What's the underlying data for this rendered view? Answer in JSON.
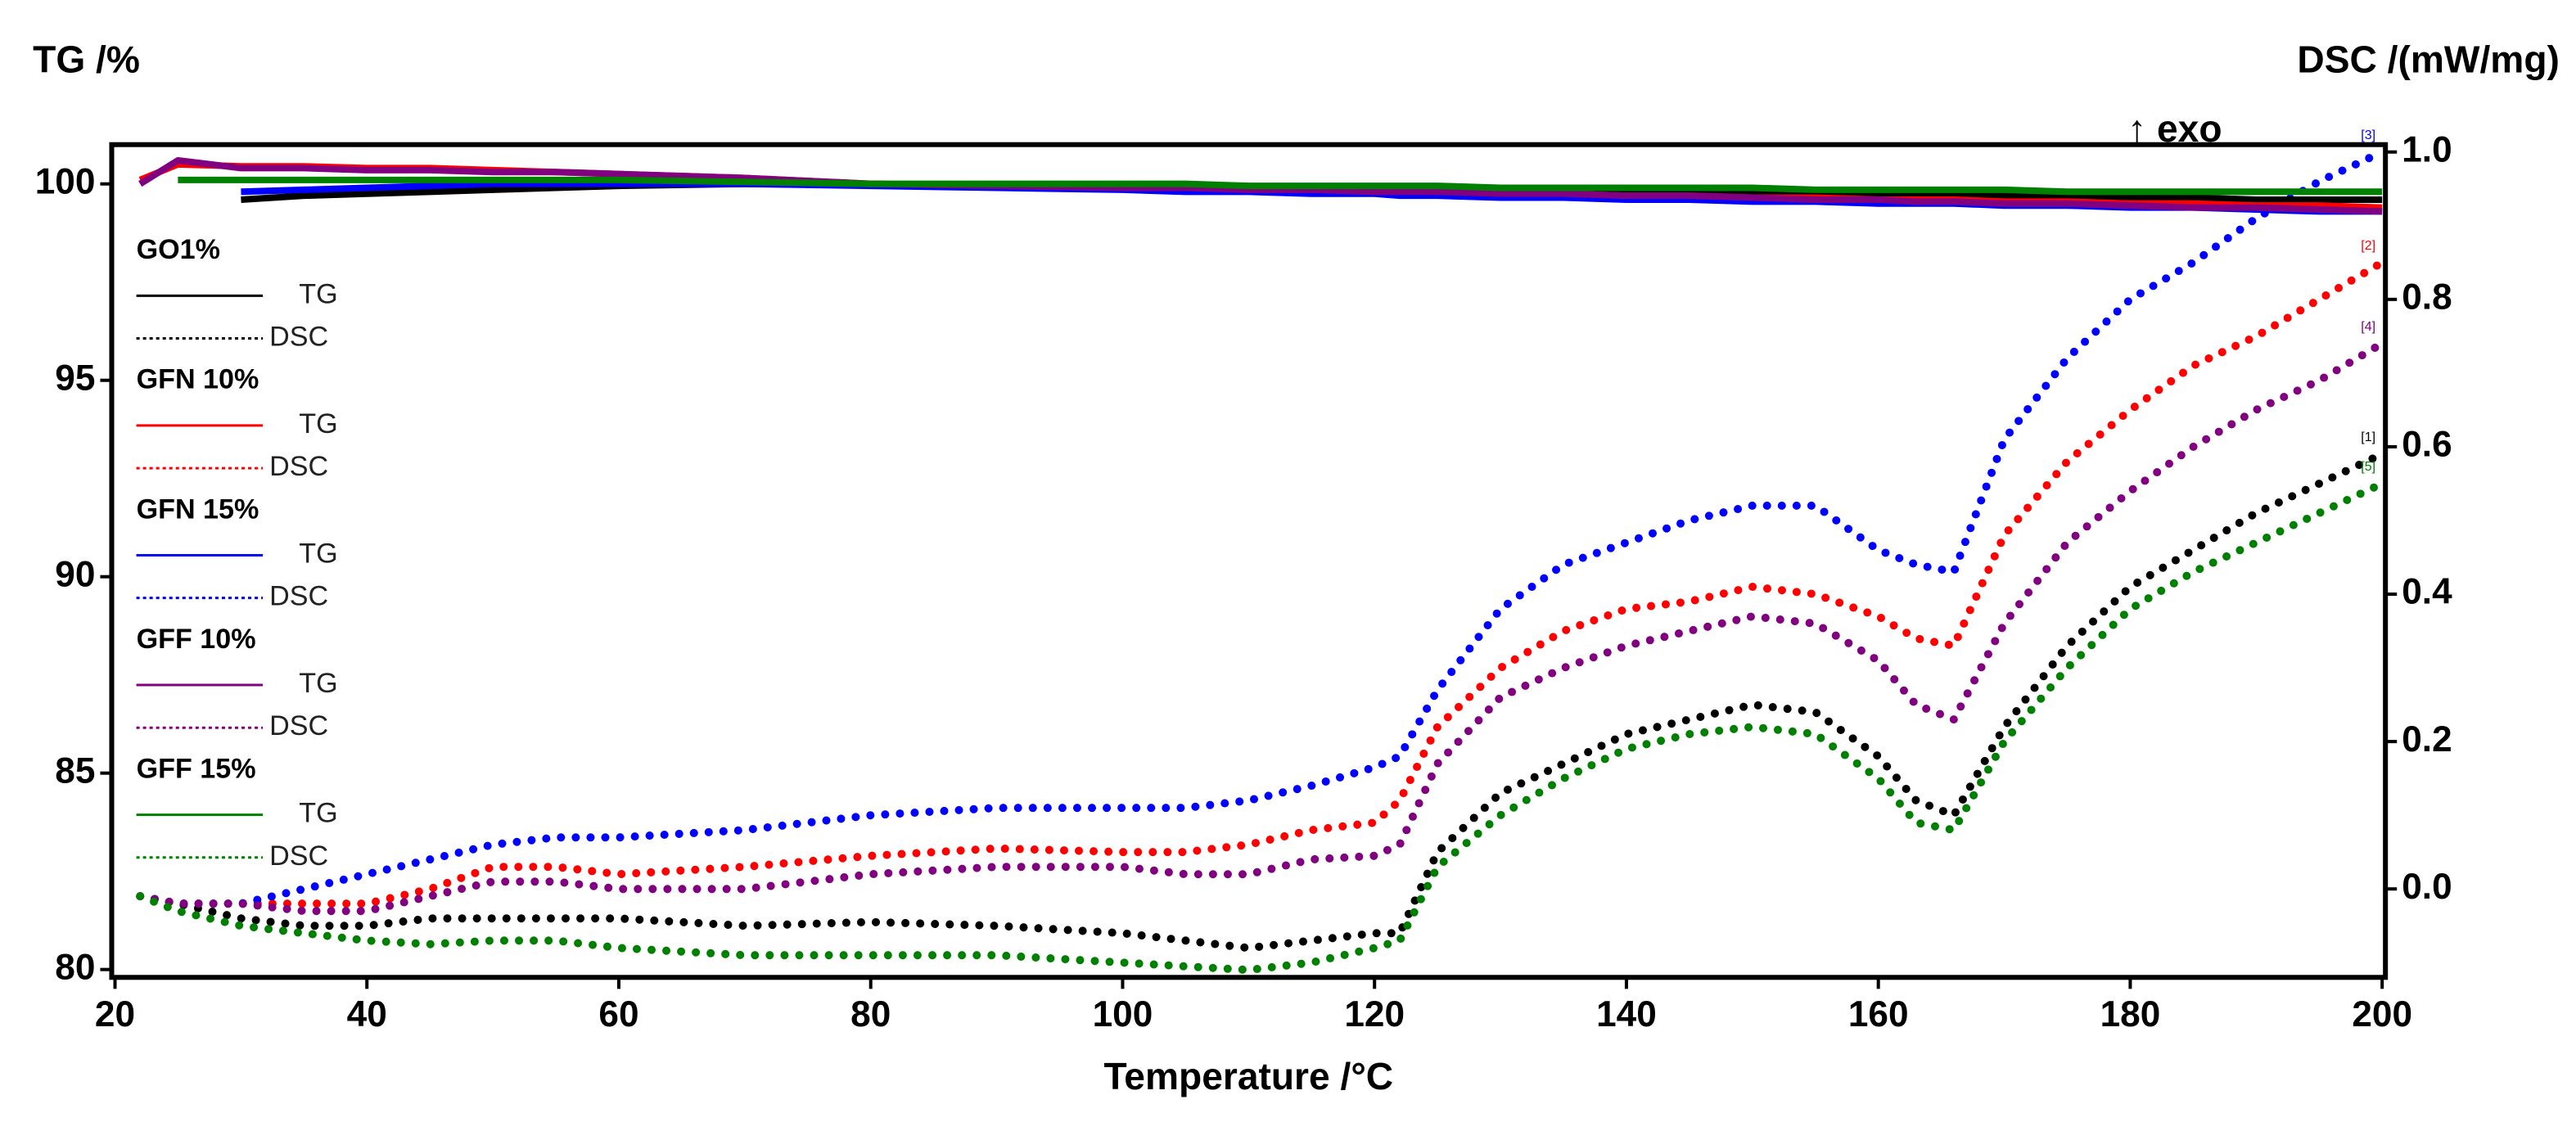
{
  "chart_data": {
    "type": "line",
    "y_label": "TG /%",
    "y2_label": "DSC /(mW/mg)",
    "x_label": "Temperature /°C",
    "annotation": "↑ exo",
    "legend_labels": {
      "tg": "TG",
      "dsc": "DSC"
    },
    "xlim": [
      20,
      200
    ],
    "xticks": [
      20,
      40,
      60,
      80,
      100,
      120,
      140,
      160,
      180,
      200
    ],
    "ylim": [
      79.8,
      101
    ],
    "yticks": [
      80,
      85,
      90,
      95,
      100
    ],
    "y2lim": [
      -0.12,
      1.01
    ],
    "y2ticks": [
      {
        "value": 0,
        "label": "0.0"
      },
      0.2,
      0.4,
      0.6,
      0.8,
      {
        "value": 1,
        "label": "1.0"
      }
    ],
    "x": [
      22,
      25,
      30,
      35,
      40,
      45,
      50,
      55,
      60,
      70,
      80,
      90,
      100,
      105,
      110,
      115,
      120,
      122,
      125,
      130,
      135,
      140,
      145,
      150,
      155,
      160,
      163,
      166,
      170,
      175,
      180,
      185,
      190,
      195,
      200
    ],
    "series": [
      {
        "name": "GO1%",
        "color": "#000000",
        "tag": "[1]",
        "tg": [
          null,
          null,
          99.6,
          99.7,
          99.75,
          99.8,
          99.85,
          99.9,
          99.95,
          100.0,
          100.0,
          99.95,
          99.9,
          99.9,
          99.9,
          99.85,
          99.85,
          99.85,
          99.85,
          99.8,
          99.8,
          99.8,
          99.8,
          99.75,
          99.75,
          99.75,
          99.7,
          99.7,
          99.7,
          99.7,
          99.65,
          99.65,
          99.6,
          99.6,
          99.6
        ],
        "dsc": [
          -0.01,
          -0.02,
          -0.04,
          -0.05,
          -0.05,
          -0.04,
          -0.04,
          -0.04,
          -0.04,
          -0.05,
          -0.045,
          -0.05,
          -0.06,
          -0.07,
          -0.08,
          -0.07,
          -0.06,
          -0.06,
          0.05,
          0.13,
          0.17,
          0.21,
          0.23,
          0.25,
          0.24,
          0.18,
          0.12,
          0.1,
          0.22,
          0.33,
          0.41,
          0.46,
          0.51,
          0.55,
          0.59
        ]
      },
      {
        "name": "GFN 10%",
        "color": "#ff0000",
        "tag": "[2]",
        "tg": [
          100.1,
          100.5,
          100.45,
          100.45,
          100.4,
          100.4,
          100.35,
          100.3,
          100.25,
          100.15,
          100.0,
          99.95,
          99.9,
          99.9,
          99.85,
          99.85,
          99.8,
          99.8,
          99.8,
          99.75,
          99.75,
          99.7,
          99.7,
          99.65,
          99.65,
          99.6,
          99.6,
          99.6,
          99.55,
          99.55,
          99.5,
          99.5,
          99.45,
          99.45,
          99.4
        ],
        "dsc": [
          -0.01,
          -0.02,
          -0.02,
          -0.02,
          -0.02,
          0,
          0.03,
          0.03,
          0.02,
          0.03,
          0.045,
          0.055,
          0.05,
          0.05,
          0.06,
          0.08,
          0.09,
          0.12,
          0.22,
          0.3,
          0.35,
          0.38,
          0.39,
          0.41,
          0.4,
          0.37,
          0.34,
          0.33,
          0.48,
          0.58,
          0.65,
          0.71,
          0.75,
          0.8,
          0.85
        ]
      },
      {
        "name": "GFN 15%",
        "color": "#0000ff",
        "tag": "[3]",
        "tg": [
          null,
          null,
          99.8,
          99.85,
          99.9,
          99.95,
          100.0,
          100.0,
          100.0,
          100.0,
          99.95,
          99.9,
          99.85,
          99.8,
          99.8,
          99.75,
          99.75,
          99.7,
          99.7,
          99.65,
          99.65,
          99.6,
          99.6,
          99.55,
          99.55,
          99.5,
          99.5,
          99.5,
          99.45,
          99.45,
          99.4,
          99.4,
          99.35,
          99.3,
          99.3
        ],
        "dsc": [
          -0.01,
          -0.02,
          -0.02,
          0,
          0.02,
          0.04,
          0.06,
          0.07,
          0.07,
          0.08,
          0.1,
          0.11,
          0.11,
          0.11,
          0.12,
          0.14,
          0.165,
          0.18,
          0.27,
          0.38,
          0.44,
          0.47,
          0.5,
          0.52,
          0.52,
          0.46,
          0.44,
          0.43,
          0.61,
          0.72,
          0.8,
          0.85,
          0.91,
          0.96,
          1
        ]
      },
      {
        "name": "GFF 10%",
        "color": "#800080",
        "tag": "[4]",
        "tg": [
          100.0,
          100.6,
          100.4,
          100.4,
          100.35,
          100.35,
          100.3,
          100.3,
          100.25,
          100.15,
          100.0,
          99.95,
          99.9,
          99.9,
          99.85,
          99.85,
          99.8,
          99.8,
          99.8,
          99.75,
          99.75,
          99.7,
          99.7,
          99.65,
          99.6,
          99.6,
          99.55,
          99.55,
          99.5,
          99.5,
          99.45,
          99.4,
          99.4,
          99.35,
          99.3
        ],
        "dsc": [
          -0.01,
          -0.02,
          -0.02,
          -0.03,
          -0.03,
          -0.01,
          0.01,
          0.01,
          0,
          0,
          0.02,
          0.03,
          0.03,
          0.02,
          0.02,
          0.04,
          0.045,
          0.06,
          0.17,
          0.26,
          0.3,
          0.33,
          0.35,
          0.37,
          0.36,
          0.31,
          0.25,
          0.23,
          0.36,
          0.47,
          0.54,
          0.6,
          0.65,
          0.69,
          0.74
        ]
      },
      {
        "name": "GFF 15%",
        "color": "#008000",
        "tag": "[5]",
        "tg": [
          null,
          100.1,
          100.1,
          100.1,
          100.1,
          100.1,
          100.1,
          100.1,
          100.1,
          100.05,
          100.0,
          100.0,
          100.0,
          100.0,
          99.95,
          99.95,
          99.95,
          99.95,
          99.95,
          99.9,
          99.9,
          99.9,
          99.9,
          99.9,
          99.85,
          99.85,
          99.85,
          99.85,
          99.85,
          99.8,
          99.8,
          99.8,
          99.8,
          99.8,
          99.8
        ],
        "dsc": [
          -0.01,
          -0.03,
          -0.05,
          -0.06,
          -0.07,
          -0.075,
          -0.07,
          -0.07,
          -0.08,
          -0.09,
          -0.09,
          -0.09,
          -0.1,
          -0.105,
          -0.11,
          -0.1,
          -0.08,
          -0.07,
          0.03,
          0.1,
          0.15,
          0.19,
          0.21,
          0.22,
          0.21,
          0.15,
          0.09,
          0.08,
          0.2,
          0.3,
          0.38,
          0.43,
          0.47,
          0.51,
          0.55
        ]
      }
    ]
  }
}
